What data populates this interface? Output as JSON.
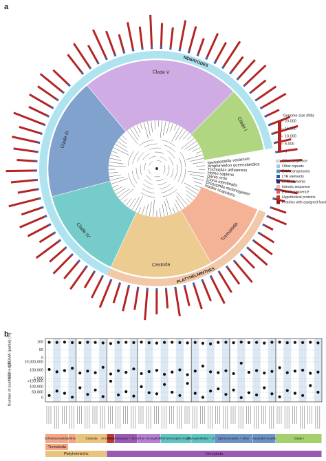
{
  "panel_a": {
    "label": "a",
    "ring_labels": [
      "NEMATODES",
      "PLATYHELMINTHES"
    ],
    "clades": [
      {
        "name": "Clade V",
        "color": "#c89ee0"
      },
      {
        "name": "Clade I",
        "color": "#a3cf6c"
      },
      {
        "name": "Trematoda",
        "color": "#f3a584"
      },
      {
        "name": "Cestoda",
        "color": "#e9c47e"
      },
      {
        "name": "Clade IV",
        "color": "#5fc4c1"
      },
      {
        "name": "Clade III",
        "color": "#6d92c6"
      }
    ],
    "outgroups": [
      "Nematostella vectensis",
      "Amphimedon queenslandica",
      "Trichoplax adhaerens",
      "Homo sapiens",
      "Danio rerio",
      "Ciona intestinalis",
      "Drosophila melanogaster",
      "Ixodes scapularis"
    ],
    "legend": {
      "scale_title": "Genome size (Mb)",
      "ticks": [
        {
          "value": 20000,
          "label": "20,000"
        },
        {
          "value": 15000,
          "label": "15,000"
        },
        {
          "value": 10000,
          "label": "10,000"
        },
        {
          "value": 5000,
          "label": "5,000"
        },
        0
      ],
      "items": [
        {
          "name": "Other sequence",
          "color": "#d9d9d9"
        },
        {
          "name": "Other repeats",
          "color": "#9ecae1"
        },
        {
          "name": "DNA transposons",
          "color": "#4a90c8"
        },
        {
          "name": "LTR elements",
          "color": "#2c5aa0"
        },
        {
          "name": "LINE elements",
          "color": "#1b2f78"
        },
        {
          "name": "Intronic sequence",
          "color": "#f4b6b6"
        },
        {
          "name": "Exonic sequence",
          "color": "#e06060"
        },
        {
          "name": "Hypothetical proteins",
          "color": "#c0392b"
        },
        {
          "name": "Proteins with assigned function",
          "color": "#8b1a1a"
        }
      ],
      "bar_color": "#b52424",
      "tip_color": "#3a66b0"
    },
    "genome_sizes": [
      14000,
      17000,
      12000,
      18500,
      15000,
      11000,
      16500,
      13000,
      19000,
      14500,
      12500,
      17500,
      15500,
      10500,
      16000,
      13500,
      18000,
      12000,
      15000,
      17000,
      11500,
      14000,
      16500,
      9000,
      13000,
      15500,
      10000,
      12500,
      14500,
      8000,
      11000,
      13000,
      7000,
      9500,
      12000,
      6500,
      10500,
      13500,
      15000,
      11000,
      16000,
      12500,
      14000,
      17500,
      13000,
      15500,
      12000,
      16500,
      11500,
      14500,
      18000,
      13000,
      15000,
      12000,
      17000,
      14000,
      11000,
      16000,
      13500,
      15500,
      12500,
      17000,
      10500,
      14500,
      16500,
      13000,
      18500,
      12000,
      15000,
      17500,
      11500,
      14000,
      16000,
      13500,
      19000,
      12500,
      15500,
      14000,
      17000,
      13000
    ]
  },
  "panel_b": {
    "label": "b",
    "rows": [
      {
        "title": "CEGMA (partial) (%)",
        "ylim": [
          0,
          100
        ],
        "yticks": [
          100,
          50,
          0
        ],
        "log": false,
        "values": [
          98,
          97,
          99,
          96,
          95,
          98,
          97,
          94,
          90,
          97,
          98,
          96,
          99,
          95,
          93,
          97,
          98,
          96,
          94,
          97,
          92,
          88,
          97,
          98,
          95,
          99,
          96,
          97,
          93,
          98,
          99,
          95,
          97,
          96,
          98,
          94
        ]
      },
      {
        "title": "N50 length",
        "ylim": [
          1000,
          10000000
        ],
        "log": true,
        "yticks": [
          {
            "value": 10000000,
            "label": "10,000,000"
          },
          {
            "value": 100000,
            "label": "100,000"
          },
          {
            "value": 1000,
            "label": "1,000"
          }
        ],
        "values": [
          150000,
          40000,
          80000,
          300000,
          20000,
          60000,
          25000,
          500000,
          12000,
          70000,
          30000,
          200000,
          15000,
          45000,
          90000,
          10000,
          35000,
          120000,
          8000,
          60000,
          1000000,
          40000,
          25000,
          70000,
          15000,
          5000000,
          30000,
          80000,
          20000,
          50000,
          400000,
          25000,
          60000,
          100000,
          18000,
          35000
        ]
      },
      {
        "title": "Number of scaffolds",
        "ylim": [
          0,
          150000
        ],
        "log": false,
        "yticks": [
          {
            "value": 150000,
            "label": ">150,000"
          },
          {
            "value": 100000,
            "label": "100,000"
          },
          {
            "value": 50000,
            "label": "50,000"
          },
          0
        ],
        "values": [
          20000,
          60000,
          40000,
          5000,
          90000,
          30000,
          70000,
          10000,
          150000,
          25000,
          55000,
          15000,
          100000,
          45000,
          35000,
          120000,
          50000,
          20000,
          130000,
          40000,
          3000,
          60000,
          80000,
          30000,
          70000,
          500,
          45000,
          25000,
          90000,
          35000,
          8000,
          65000,
          40000,
          20000,
          110000,
          50000
        ]
      }
    ],
    "groups": [
      {
        "name": "Schistosomatidae",
        "color": "#f3a584"
      },
      {
        "name": "Other",
        "color": "#f3a584"
      },
      {
        "name": "Cestoda",
        "color": "#e9c47e"
      },
      {
        "name": "Other",
        "color": "#c0392b"
      },
      {
        "name": "Ancylostomatoidea + Strongyloidea",
        "color": "#9b59b6"
      },
      {
        "name": "Other strongylids",
        "color": "#b57fd6"
      },
      {
        "name": "Trichostrongylo-morpha",
        "color": "#5fc4c1"
      },
      {
        "name": "Strongyloididae + other",
        "color": "#5fc4c1"
      },
      {
        "name": "Spiruromorpha + other",
        "color": "#6d92c6"
      },
      {
        "name": "Ascarido-morpha",
        "color": "#6d92c6"
      },
      {
        "name": "Clade I",
        "color": "#a3cf6c"
      }
    ],
    "phyla": [
      {
        "name": "Trematoda",
        "color": "#f3a584"
      },
      {
        "name": "Platyhelminths",
        "color": "#e9c47e"
      },
      {
        "name": "Nematoda",
        "color": "#9b59b6"
      }
    ]
  }
}
